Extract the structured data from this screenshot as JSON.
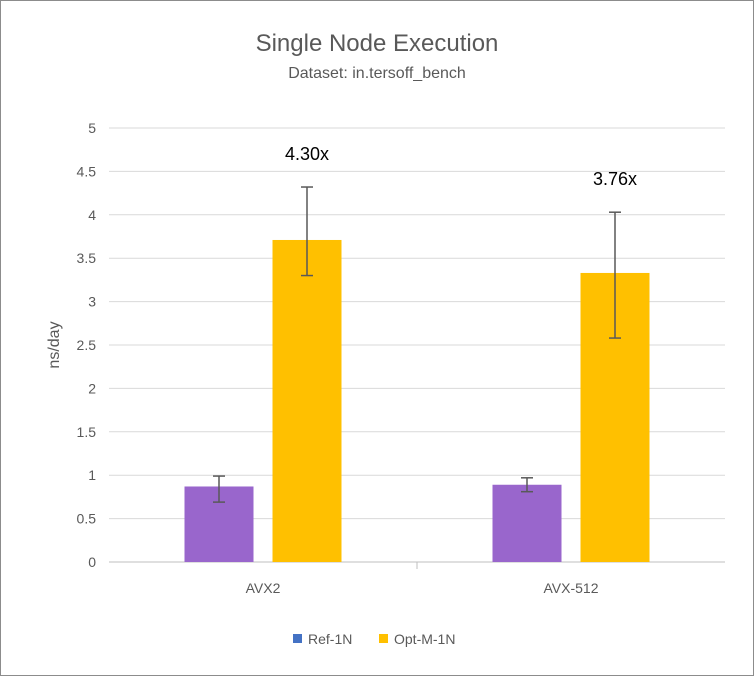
{
  "chart_data": {
    "type": "bar",
    "title": "Single Node Execution",
    "subtitle": "Dataset: in.tersoff_bench",
    "xlabel": "",
    "ylabel": "ns/day",
    "ylim": [
      0,
      5
    ],
    "yticks": [
      "0",
      "0.5",
      "1",
      "1.5",
      "2",
      "2.5",
      "3",
      "3.5",
      "4",
      "4.5",
      "5"
    ],
    "categories": [
      "AVX2",
      "AVX-512"
    ],
    "series": [
      {
        "name": "Ref-1N",
        "color": "#9966cc",
        "legend_color": "#4472c4",
        "values": [
          0.87,
          0.89
        ],
        "error_low": [
          0.69,
          0.81
        ],
        "error_high": [
          0.99,
          0.97
        ]
      },
      {
        "name": "Opt-M-1N",
        "color": "#ffc000",
        "legend_color": "#ffc000",
        "values": [
          3.71,
          3.33
        ],
        "error_low": [
          3.3,
          2.58
        ],
        "error_high": [
          4.32,
          4.03
        ]
      }
    ],
    "annotations": [
      "4.30x",
      "3.76x"
    ],
    "grid": true,
    "legend_position": "bottom"
  }
}
